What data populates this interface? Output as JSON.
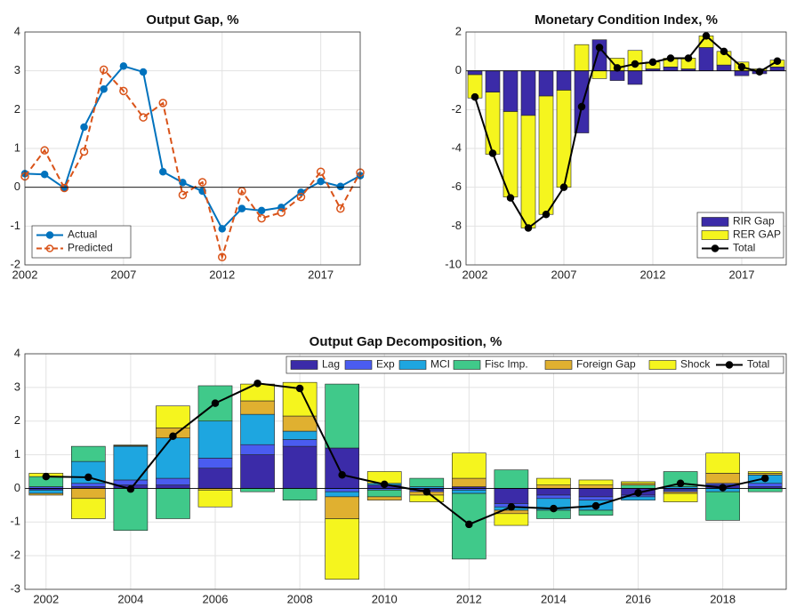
{
  "chart_data": [
    {
      "type": "line",
      "title": "Output Gap, %",
      "x": [
        2002,
        2003,
        2004,
        2005,
        2006,
        2007,
        2008,
        2009,
        2010,
        2011,
        2012,
        2013,
        2014,
        2015,
        2016,
        2017,
        2018,
        2019
      ],
      "xlim": [
        2002,
        2019
      ],
      "xticks": [
        2002,
        2007,
        2012,
        2017
      ],
      "ylim": [
        -2,
        4
      ],
      "yticks": [
        -2,
        -1,
        0,
        1,
        2,
        3,
        4
      ],
      "grid": true,
      "legend": "lower left",
      "series": [
        {
          "name": "Actual",
          "color": "#0072bd",
          "linestyle": "solid",
          "marker": "filled-circle",
          "values": [
            0.35,
            0.33,
            -0.02,
            1.55,
            2.53,
            3.12,
            2.97,
            0.4,
            0.12,
            -0.1,
            -1.07,
            -0.55,
            -0.6,
            -0.52,
            -0.13,
            0.15,
            0.02,
            0.3
          ]
        },
        {
          "name": "Predicted",
          "color": "#d95319",
          "linestyle": "dashed",
          "marker": "open-circle",
          "values": [
            0.28,
            0.95,
            -0.02,
            0.92,
            3.03,
            2.48,
            1.8,
            2.17,
            -0.2,
            0.13,
            -1.8,
            -0.1,
            -0.8,
            -0.65,
            -0.25,
            0.4,
            -0.55,
            0.38
          ]
        }
      ]
    },
    {
      "type": "bar",
      "stacked": true,
      "title": "Monetary Condition Index, %",
      "x": [
        2002,
        2003,
        2004,
        2005,
        2006,
        2007,
        2008,
        2009,
        2010,
        2011,
        2012,
        2013,
        2014,
        2015,
        2016,
        2017,
        2018,
        2019
      ],
      "xlim": [
        2001.5,
        2019.5
      ],
      "xticks": [
        2002,
        2007,
        2012,
        2017
      ],
      "ylim": [
        -10,
        2
      ],
      "yticks": [
        -10,
        -8,
        -6,
        -4,
        -2,
        0,
        2
      ],
      "grid": true,
      "legend": "lower right",
      "series": [
        {
          "name": "RIR Gap",
          "color": "#3b2ba8",
          "values": [
            -0.2,
            -1.1,
            -2.1,
            -2.3,
            -1.3,
            -1.0,
            -3.2,
            1.6,
            -0.5,
            -0.7,
            0.1,
            0.2,
            0.1,
            1.2,
            0.3,
            -0.25,
            -0.15,
            0.2
          ]
        },
        {
          "name": "RER GAP",
          "color": "#f5f51e",
          "values": [
            -1.2,
            -3.2,
            -4.4,
            -5.8,
            -6.1,
            -5.0,
            1.35,
            -0.4,
            0.65,
            1.05,
            0.35,
            0.45,
            0.55,
            0.6,
            0.7,
            0.45,
            0.1,
            0.35
          ]
        },
        {
          "name": "Total",
          "type": "line",
          "color": "#000000",
          "values": [
            -1.35,
            -4.25,
            -6.55,
            -8.1,
            -7.4,
            -6.0,
            -1.85,
            1.2,
            0.15,
            0.35,
            0.45,
            0.65,
            0.65,
            1.8,
            1.0,
            0.2,
            -0.05,
            0.5
          ]
        }
      ]
    },
    {
      "type": "bar",
      "stacked": true,
      "title": "Output Gap Decomposition, %",
      "x": [
        2002,
        2003,
        2004,
        2005,
        2006,
        2007,
        2008,
        2009,
        2010,
        2011,
        2012,
        2013,
        2014,
        2015,
        2016,
        2017,
        2018,
        2019
      ],
      "xlim": [
        2001.5,
        2019.5
      ],
      "xticks": [
        2002,
        2004,
        2006,
        2008,
        2010,
        2012,
        2014,
        2016,
        2018
      ],
      "ylim": [
        -3,
        4
      ],
      "yticks": [
        -3,
        -2,
        -1,
        0,
        1,
        2,
        3,
        4
      ],
      "grid": true,
      "legend": "upper right",
      "legend_orientation": "horizontal",
      "series": [
        {
          "name": "Lag",
          "color": "#3b2ba8",
          "values": [
            -0.05,
            0.05,
            0.1,
            0.1,
            0.6,
            1.0,
            1.25,
            1.2,
            0.1,
            -0.05,
            0.05,
            -0.45,
            -0.2,
            -0.25,
            -0.2,
            -0.05,
            0.1,
            0.05
          ]
        },
        {
          "name": "Exp",
          "color": "#4a5cf0",
          "values": [
            0.05,
            0.1,
            0.15,
            0.2,
            0.3,
            0.3,
            0.2,
            -0.1,
            -0.05,
            -0.05,
            -0.05,
            -0.1,
            -0.1,
            -0.1,
            -0.05,
            -0.05,
            0.05,
            0.1
          ]
        },
        {
          "name": "MCI",
          "color": "#1ea6e0",
          "values": [
            -0.1,
            0.65,
            1.0,
            1.2,
            1.1,
            0.9,
            0.25,
            -0.15,
            0.05,
            0.05,
            -0.1,
            -0.1,
            -0.35,
            -0.3,
            -0.1,
            0.05,
            -0.1,
            0.25
          ]
        },
        {
          "name": "Fisc Imp.",
          "color": "#40c98a",
          "values": [
            0.3,
            0.45,
            -1.25,
            -0.9,
            1.05,
            -0.1,
            -0.35,
            1.9,
            -0.2,
            0.25,
            -1.95,
            0.55,
            -0.25,
            -0.15,
            0.1,
            0.45,
            -0.85,
            -0.1
          ]
        },
        {
          "name": "Foreign Gap",
          "color": "#e0b030",
          "values": [
            -0.05,
            -0.3,
            0.02,
            0.3,
            -0.05,
            0.4,
            0.45,
            -0.65,
            -0.1,
            -0.1,
            0.25,
            -0.1,
            0.1,
            0.1,
            0.05,
            -0.05,
            0.3,
            0.05
          ]
        },
        {
          "name": "Shock",
          "color": "#f5f51e",
          "values": [
            0.1,
            -0.6,
            0.02,
            0.65,
            -0.5,
            0.5,
            1.0,
            -1.8,
            0.35,
            -0.2,
            0.75,
            -0.35,
            0.2,
            0.15,
            0.05,
            -0.25,
            0.6,
            0.05
          ]
        },
        {
          "name": "Total",
          "type": "line",
          "color": "#000000",
          "values": [
            0.35,
            0.33,
            -0.02,
            1.55,
            2.53,
            3.12,
            2.97,
            0.4,
            0.12,
            -0.1,
            -1.07,
            -0.55,
            -0.6,
            -0.52,
            -0.13,
            0.15,
            0.02,
            0.3
          ]
        }
      ]
    }
  ]
}
